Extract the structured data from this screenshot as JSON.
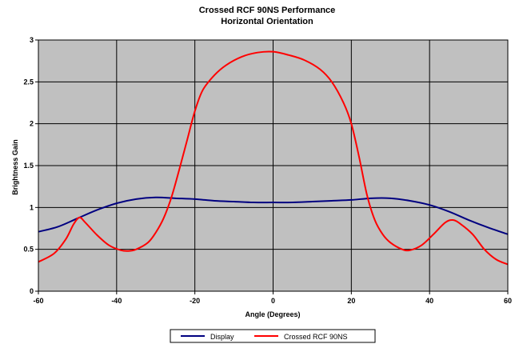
{
  "chart_data": {
    "type": "line",
    "title": "Crossed RCF 90NS Performance",
    "subtitle": "Horizontal Orientation",
    "xlabel": "Angle (Degrees)",
    "ylabel": "Brightness Gain",
    "xlim": [
      -60,
      60
    ],
    "ylim": [
      0,
      3
    ],
    "x_ticks": [
      "-60",
      "-40",
      "-20",
      "0",
      "20",
      "40",
      "60"
    ],
    "y_ticks": [
      "0",
      "0.5",
      "1",
      "1.5",
      "2",
      "2.5",
      "3"
    ],
    "grid": true,
    "plot_background": "#C0C0C0",
    "legend_position": "bottom",
    "series": [
      {
        "name": "Display",
        "color": "#000080",
        "points": [
          [
            -60,
            0.71
          ],
          [
            -55,
            0.77
          ],
          [
            -50,
            0.87
          ],
          [
            -45,
            0.97
          ],
          [
            -40,
            1.05
          ],
          [
            -35,
            1.1
          ],
          [
            -30,
            1.12
          ],
          [
            -25,
            1.11
          ],
          [
            -20,
            1.1
          ],
          [
            -15,
            1.08
          ],
          [
            -10,
            1.07
          ],
          [
            -5,
            1.06
          ],
          [
            0,
            1.06
          ],
          [
            5,
            1.06
          ],
          [
            10,
            1.07
          ],
          [
            15,
            1.08
          ],
          [
            20,
            1.09
          ],
          [
            25,
            1.11
          ],
          [
            30,
            1.11
          ],
          [
            35,
            1.08
          ],
          [
            40,
            1.03
          ],
          [
            45,
            0.95
          ],
          [
            50,
            0.85
          ],
          [
            55,
            0.76
          ],
          [
            60,
            0.68
          ]
        ]
      },
      {
        "name": "Crossed RCF 90NS",
        "color": "#FF0000",
        "points": [
          [
            -60,
            0.35
          ],
          [
            -56,
            0.45
          ],
          [
            -53,
            0.62
          ],
          [
            -51,
            0.8
          ],
          [
            -49.5,
            0.88
          ],
          [
            -48,
            0.82
          ],
          [
            -45,
            0.67
          ],
          [
            -42,
            0.55
          ],
          [
            -39,
            0.49
          ],
          [
            -37,
            0.48
          ],
          [
            -35,
            0.5
          ],
          [
            -32,
            0.58
          ],
          [
            -30,
            0.7
          ],
          [
            -28,
            0.87
          ],
          [
            -26,
            1.12
          ],
          [
            -24,
            1.45
          ],
          [
            -22,
            1.8
          ],
          [
            -20,
            2.15
          ],
          [
            -18,
            2.4
          ],
          [
            -15,
            2.58
          ],
          [
            -12,
            2.7
          ],
          [
            -8,
            2.8
          ],
          [
            -4,
            2.85
          ],
          [
            0,
            2.86
          ],
          [
            4,
            2.82
          ],
          [
            8,
            2.76
          ],
          [
            12,
            2.65
          ],
          [
            15,
            2.5
          ],
          [
            18,
            2.25
          ],
          [
            20,
            2.0
          ],
          [
            22,
            1.6
          ],
          [
            24,
            1.15
          ],
          [
            26,
            0.85
          ],
          [
            28,
            0.68
          ],
          [
            30,
            0.58
          ],
          [
            33,
            0.5
          ],
          [
            35,
            0.49
          ],
          [
            38,
            0.55
          ],
          [
            41,
            0.68
          ],
          [
            44,
            0.82
          ],
          [
            46,
            0.85
          ],
          [
            48,
            0.8
          ],
          [
            51,
            0.68
          ],
          [
            54,
            0.5
          ],
          [
            57,
            0.38
          ],
          [
            60,
            0.32
          ]
        ]
      }
    ]
  }
}
